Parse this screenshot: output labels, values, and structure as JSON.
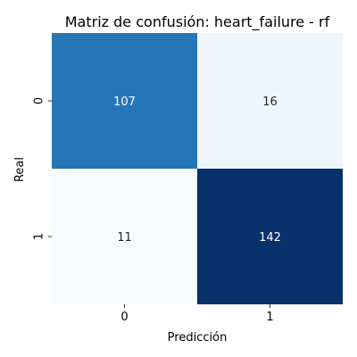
{
  "chart_data": {
    "type": "heatmap",
    "title": "Matriz de confusión: heart_failure - rf",
    "xlabel": "Predicción",
    "ylabel": "Real",
    "x_categories": [
      "0",
      "1"
    ],
    "y_categories": [
      "0",
      "1"
    ],
    "values": [
      [
        107,
        16
      ],
      [
        11,
        142
      ]
    ],
    "colormap": "Blues",
    "colorbar": false,
    "colors": {
      "low": "#f7fbff",
      "high": "#08306b",
      "text_dark": "#262626",
      "text_light": "#ffffff"
    }
  }
}
